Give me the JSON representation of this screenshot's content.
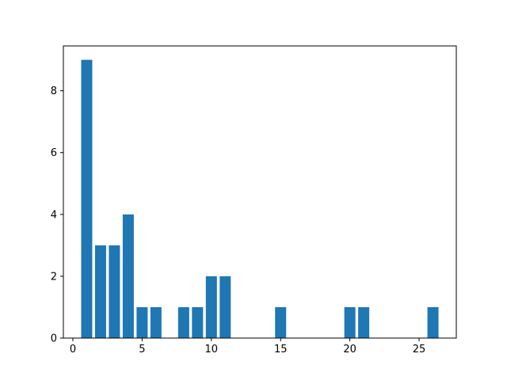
{
  "chart_data": {
    "type": "bar",
    "x": [
      1,
      2,
      3,
      4,
      5,
      6,
      8,
      9,
      10,
      11,
      15,
      20,
      21,
      26
    ],
    "values": [
      9,
      3,
      3,
      4,
      1,
      1,
      1,
      1,
      2,
      2,
      1,
      1,
      1,
      1
    ],
    "bar_width": 0.8,
    "bar_color": "#1f77b4",
    "title": "",
    "xlabel": "",
    "ylabel": "",
    "xlim": [
      -0.685,
      27.685
    ],
    "ylim": [
      0,
      9.45
    ],
    "xticks": [
      0,
      5,
      10,
      15,
      20,
      25
    ],
    "yticks": [
      0,
      2,
      4,
      6,
      8
    ],
    "grid": false,
    "legend": "none"
  }
}
